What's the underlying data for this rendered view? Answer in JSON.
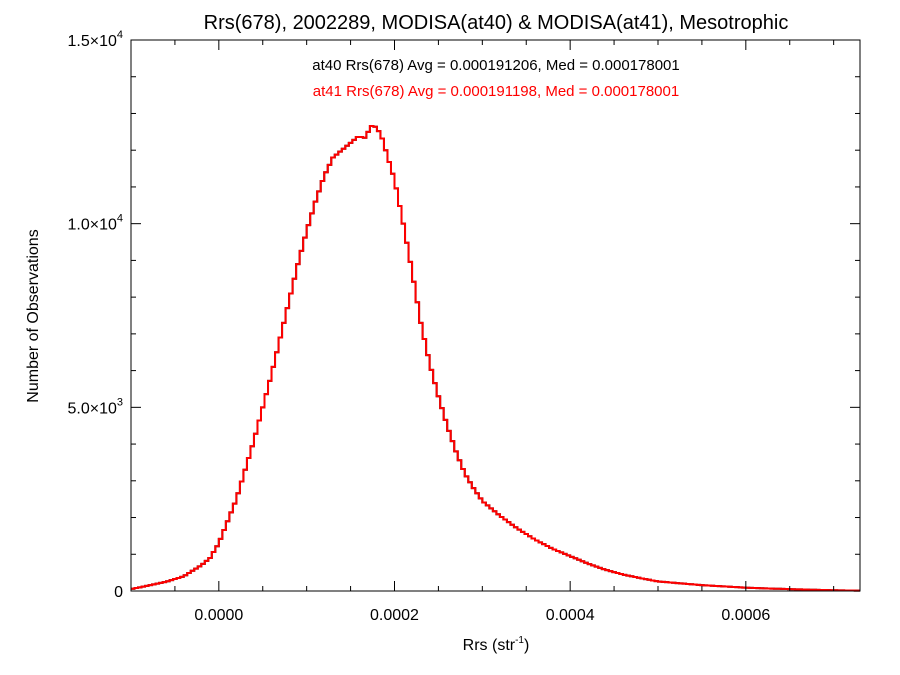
{
  "chart_data": {
    "type": "histogram",
    "title": "Rrs(678), 2002289, MODISA(at40) & MODISA(at41), Mesotrophic",
    "xlabel": "Rrs (str",
    "xlabel_sup": "-1",
    "xlabel_close": ")",
    "ylabel": "Number of Observations",
    "xlim": [
      -0.0001,
      0.00073
    ],
    "ylim": [
      0,
      15000
    ],
    "x_ticks": [
      {
        "value": 0.0,
        "label": "0.0000"
      },
      {
        "value": 0.0002,
        "label": "0.0002"
      },
      {
        "value": 0.0004,
        "label": "0.0004"
      },
      {
        "value": 0.0006,
        "label": "0.0006"
      }
    ],
    "y_ticks": [
      {
        "value": 0,
        "label": "0",
        "sup": ""
      },
      {
        "value": 5000,
        "label": "5.0×10",
        "sup": "3"
      },
      {
        "value": 10000,
        "label": "1.0×10",
        "sup": "4"
      },
      {
        "value": 15000,
        "label": "1.5×10",
        "sup": "4"
      }
    ],
    "grid": false,
    "bin_width": 4e-06,
    "annotations": [
      {
        "text": "at40 Rrs(678) Avg = 0.000191206, Med = 0.000178001",
        "color": "#000000"
      },
      {
        "text": "at41 Rrs(678) Avg = 0.000191198, Med = 0.000178001",
        "color": "#ff0000"
      }
    ],
    "series": [
      {
        "name": "at40 Rrs(678)",
        "color": "#000000",
        "x": [
          -0.0001,
          -8e-05,
          -6e-05,
          -4e-05,
          -3e-05,
          -2e-05,
          -1e-05,
          0.0,
          1e-05,
          2e-05,
          3e-05,
          4e-05,
          5e-05,
          6e-05,
          7e-05,
          8e-05,
          9e-05,
          0.0001,
          0.00011,
          0.00012,
          0.00013,
          0.00014,
          0.00015,
          0.00016,
          0.000165,
          0.00017,
          0.000175,
          0.00018,
          0.000185,
          0.00019,
          0.0002,
          0.00021,
          0.00022,
          0.00023,
          0.00024,
          0.00025,
          0.00026,
          0.00027,
          0.00028,
          0.00029,
          0.0003,
          0.00032,
          0.00034,
          0.00036,
          0.00038,
          0.0004,
          0.00042,
          0.00044,
          0.00046,
          0.00048,
          0.0005,
          0.00055,
          0.0006,
          0.00065,
          0.0007,
          0.00073
        ],
        "y": [
          50,
          150,
          250,
          400,
          550,
          700,
          900,
          1300,
          1900,
          2500,
          3300,
          4100,
          5000,
          5900,
          6900,
          7900,
          8900,
          9800,
          10600,
          11300,
          11800,
          12000,
          12200,
          12400,
          12300,
          12500,
          12700,
          12600,
          12400,
          12000,
          11200,
          10000,
          8700,
          7300,
          6200,
          5300,
          4500,
          3800,
          3200,
          2800,
          2450,
          2050,
          1700,
          1400,
          1150,
          950,
          750,
          580,
          450,
          350,
          260,
          160,
          90,
          50,
          20,
          10
        ]
      },
      {
        "name": "at41 Rrs(678)",
        "color": "#ff0000",
        "x": [
          -0.0001,
          -8e-05,
          -6e-05,
          -4e-05,
          -3e-05,
          -2e-05,
          -1e-05,
          0.0,
          1e-05,
          2e-05,
          3e-05,
          4e-05,
          5e-05,
          6e-05,
          7e-05,
          8e-05,
          9e-05,
          0.0001,
          0.00011,
          0.00012,
          0.00013,
          0.00014,
          0.00015,
          0.00016,
          0.000165,
          0.00017,
          0.000175,
          0.00018,
          0.000185,
          0.00019,
          0.0002,
          0.00021,
          0.00022,
          0.00023,
          0.00024,
          0.00025,
          0.00026,
          0.00027,
          0.00028,
          0.00029,
          0.0003,
          0.00032,
          0.00034,
          0.00036,
          0.00038,
          0.0004,
          0.00042,
          0.00044,
          0.00046,
          0.00048,
          0.0005,
          0.00055,
          0.0006,
          0.00065,
          0.0007,
          0.00073
        ],
        "y": [
          50,
          150,
          250,
          400,
          550,
          700,
          900,
          1300,
          1900,
          2500,
          3300,
          4100,
          5000,
          5900,
          6900,
          7900,
          8900,
          9800,
          10600,
          11300,
          11800,
          12000,
          12200,
          12400,
          12300,
          12500,
          12700,
          12600,
          12400,
          12000,
          11200,
          10000,
          8700,
          7300,
          6200,
          5300,
          4500,
          3800,
          3200,
          2800,
          2450,
          2050,
          1700,
          1400,
          1150,
          950,
          750,
          580,
          450,
          350,
          260,
          160,
          90,
          50,
          20,
          10
        ]
      }
    ]
  }
}
